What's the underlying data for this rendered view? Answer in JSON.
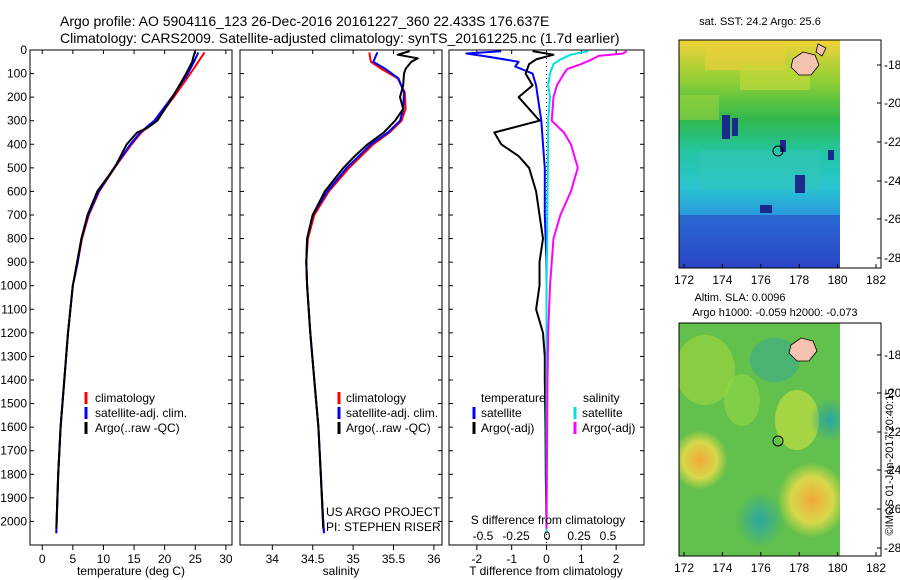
{
  "header": {
    "line1": "Argo profile: AO 5904116_123 26-Dec-2016 20161227_360 22.433S 176.637E",
    "line2": "Climatology: CARS2009. Satellite-adjusted climatology: synTS_20161225.nc (1.7d earlier)"
  },
  "colors": {
    "climatology": "#ff0000",
    "satellite": "#0000ff",
    "argo": "#000000",
    "sat_salinity": "#00e0e0",
    "argo_salinity": "#ff00ff"
  },
  "chart_data": [
    {
      "type": "line",
      "xlabel": "temperature (deg C)",
      "ylabel": "",
      "xlim": [
        -2,
        31
      ],
      "ylim": [
        2100,
        0
      ],
      "xticks": [
        0,
        5,
        10,
        15,
        20,
        25,
        30
      ],
      "yticks": [
        0,
        100,
        200,
        300,
        400,
        500,
        600,
        700,
        800,
        900,
        1000,
        1100,
        1200,
        1300,
        1400,
        1500,
        1600,
        1700,
        1800,
        1900,
        2000
      ],
      "legend": [
        "climatology",
        "satellite-adj. clim.",
        "Argo(..raw -QC)"
      ],
      "series": [
        {
          "name": "climatology",
          "color": "#ff0000",
          "depth": [
            10,
            50,
            100,
            200,
            300,
            350,
            400,
            500,
            600,
            700,
            800,
            900,
            1000,
            1200,
            1400,
            1600,
            1800,
            2050
          ],
          "values": [
            26.5,
            25.5,
            24.2,
            21.5,
            18.5,
            16.2,
            14.6,
            11.8,
            9.3,
            7.6,
            6.5,
            5.8,
            5.0,
            4.2,
            3.6,
            3.0,
            2.6,
            2.3
          ]
        },
        {
          "name": "satellite-adj. clim.",
          "color": "#0000ff",
          "depth": [
            10,
            50,
            100,
            200,
            300,
            350,
            400,
            500,
            600,
            700,
            800,
            900,
            1000,
            1200,
            1400,
            1600,
            1800,
            2050
          ],
          "values": [
            25.5,
            24.8,
            23.8,
            21.2,
            18.3,
            16.0,
            14.4,
            11.7,
            9.2,
            7.5,
            6.4,
            5.8,
            5.0,
            4.2,
            3.6,
            3.0,
            2.6,
            2.3
          ]
        },
        {
          "name": "Argo(..raw -QC)",
          "color": "#000000",
          "depth": [
            5,
            20,
            50,
            100,
            200,
            300,
            330,
            350,
            400,
            450,
            500,
            600,
            700,
            800,
            900,
            1000,
            1200,
            1400,
            1600,
            1800,
            2030
          ],
          "values": [
            25.0,
            24.8,
            24.5,
            23.5,
            21.3,
            18.8,
            17.2,
            15.5,
            13.8,
            12.8,
            11.8,
            9.0,
            7.4,
            6.4,
            5.7,
            5.0,
            4.2,
            3.6,
            3.0,
            2.6,
            2.3
          ]
        }
      ]
    },
    {
      "type": "line",
      "xlabel": "salinity",
      "xlim": [
        33.6,
        36.1
      ],
      "ylim": [
        2100,
        0
      ],
      "xticks": [
        34,
        34.5,
        35,
        35.5,
        36
      ],
      "legend": [
        "climatology",
        "satellite-adj. clim.",
        "Argo(..raw -QC)"
      ],
      "series": [
        {
          "name": "climatology",
          "color": "#ff0000",
          "depth": [
            10,
            50,
            80,
            120,
            180,
            250,
            300,
            350,
            400,
            500,
            600,
            700,
            800,
            900,
            1000,
            1200,
            1400,
            1600,
            1800,
            2000,
            2050
          ],
          "values": [
            35.2,
            35.22,
            35.35,
            35.55,
            35.64,
            35.65,
            35.6,
            35.45,
            35.25,
            34.95,
            34.7,
            34.52,
            34.44,
            34.42,
            34.43,
            34.47,
            34.52,
            34.57,
            34.6,
            34.63,
            34.64
          ]
        },
        {
          "name": "satellite-adj. clim.",
          "color": "#0000ff",
          "depth": [
            10,
            50,
            80,
            120,
            180,
            250,
            300,
            350,
            400,
            500,
            600,
            700,
            800,
            900,
            1000,
            1200,
            1400,
            1600,
            1800,
            2000,
            2050
          ],
          "values": [
            35.3,
            35.25,
            35.4,
            35.56,
            35.63,
            35.62,
            35.58,
            35.43,
            35.22,
            34.92,
            34.68,
            34.5,
            34.43,
            34.42,
            34.43,
            34.47,
            34.52,
            34.57,
            34.6,
            34.63,
            34.64
          ]
        },
        {
          "name": "Argo(..raw -QC)",
          "color": "#000000",
          "depth": [
            5,
            20,
            35,
            50,
            80,
            100,
            150,
            200,
            250,
            300,
            350,
            400,
            450,
            500,
            600,
            700,
            800,
            900,
            1000,
            1200,
            1400,
            1600,
            1800,
            2030
          ],
          "values": [
            35.7,
            35.55,
            35.8,
            35.72,
            35.65,
            35.63,
            35.62,
            35.58,
            35.62,
            35.52,
            35.38,
            35.18,
            35.02,
            34.88,
            34.65,
            34.5,
            34.43,
            34.42,
            34.43,
            34.47,
            34.52,
            34.57,
            34.6,
            34.63
          ]
        }
      ],
      "annotations": [
        "US ARGO PROJECT",
        "PI: STEPHEN RISER"
      ]
    },
    {
      "type": "line",
      "xlabel": "T difference from climatology",
      "title": "S difference from climatology",
      "xlim": [
        -2.8,
        2.8
      ],
      "ylim": [
        2100,
        0
      ],
      "xticks": [
        -2,
        -1,
        0,
        1,
        2
      ],
      "secondary_xticks": [
        "-0.5",
        "-0.25",
        "0",
        "0.25",
        "0.5"
      ],
      "legend_groups": [
        "temperature",
        "salinity"
      ],
      "legend": [
        "satellite",
        "Argo(-adj)",
        "satellite",
        "Argo(-adj)"
      ],
      "series": [
        {
          "name": "satellite",
          "group": "temperature",
          "color": "#0000ff",
          "depth": [
            5,
            15,
            30,
            50,
            70,
            100,
            150,
            200,
            300,
            400,
            500,
            700,
            900,
            1200,
            1600,
            2050
          ],
          "values": [
            -1.3,
            -2.3,
            -1.6,
            -0.8,
            -0.9,
            -0.4,
            -0.3,
            -0.25,
            -0.15,
            -0.1,
            -0.05,
            -0.05,
            0,
            0,
            0,
            0
          ]
        },
        {
          "name": "Argo(-adj)",
          "group": "temperature",
          "color": "#000000",
          "depth": [
            5,
            20,
            40,
            60,
            100,
            150,
            200,
            250,
            300,
            350,
            400,
            450,
            500,
            600,
            700,
            800,
            900,
            1000,
            1100,
            1200,
            1300,
            1400,
            1600,
            1800,
            2030
          ],
          "values": [
            -0.4,
            0.2,
            -0.3,
            -0.5,
            -0.6,
            -0.4,
            -0.8,
            -0.5,
            -0.2,
            -1.5,
            -1.3,
            -0.8,
            -0.5,
            -0.3,
            -0.2,
            -0.1,
            -0.2,
            -0.2,
            -0.3,
            -0.1,
            -0.05,
            -0.05,
            -0.03,
            -0.02,
            0
          ]
        },
        {
          "name": "satellite",
          "group": "salinity",
          "color": "#00e0e0",
          "depth": [
            5,
            20,
            40,
            60,
            80,
            100,
            150,
            200,
            300,
            400,
            600,
            800,
            1000,
            1400,
            2050
          ],
          "values": [
            1.2,
            0.7,
            0.4,
            0.2,
            0.15,
            0.1,
            0.05,
            0.1,
            0.05,
            0.05,
            0.03,
            0.02,
            0,
            0,
            0
          ]
        },
        {
          "name": "Argo(-adj)",
          "group": "salinity",
          "color": "#ff00ff",
          "depth": [
            5,
            15,
            25,
            40,
            60,
            80,
            100,
            150,
            200,
            300,
            350,
            400,
            450,
            500,
            600,
            700,
            800,
            1000,
            1200,
            1400,
            1600,
            2030
          ],
          "values": [
            2.3,
            2.2,
            1.5,
            1.3,
            1.0,
            0.6,
            0.5,
            0.3,
            0.2,
            0.15,
            0.5,
            0.7,
            0.8,
            0.9,
            0.7,
            0.4,
            0.2,
            0.1,
            0.05,
            0.03,
            0.02,
            0
          ]
        }
      ]
    }
  ],
  "maps": {
    "top": {
      "title": "sat. SST: 24.2 Argo: 25.6",
      "xticks": [
        "172",
        "174",
        "176",
        "178",
        "180",
        "182"
      ],
      "yticks": [
        "-18",
        "-20",
        "-22",
        "-24",
        "-26",
        "-28"
      ]
    },
    "bottom": {
      "title1": "Altim. SLA: 0.0096",
      "title2": "Argo h1000: -0.059 h2000: -0.073",
      "xticks": [
        "172",
        "174",
        "176",
        "178",
        "180",
        "182"
      ],
      "yticks": [
        "-18",
        "-20",
        "-22",
        "-24",
        "-26",
        "-28"
      ]
    },
    "credit": "©IMOS 01-Jan-2017 20:40:15"
  }
}
